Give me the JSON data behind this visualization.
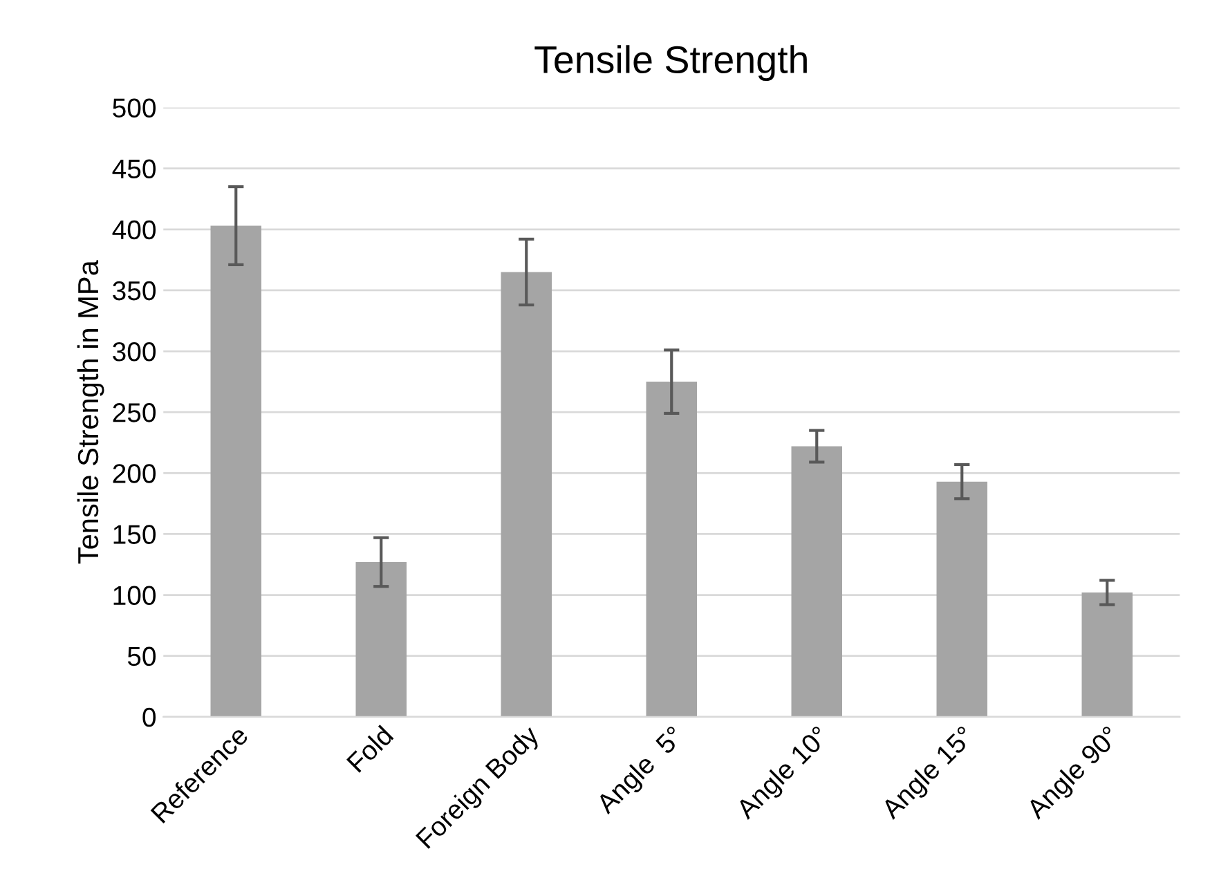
{
  "chart_data": {
    "type": "bar",
    "title": "Tensile Strength",
    "ylabel": "Tensile Strength in MPa",
    "categories": [
      "Reference",
      "Fold",
      "Foreign Body",
      "Angle  5°",
      "Angle 10°",
      "Angle 15°",
      "Angle 90°"
    ],
    "values": [
      403,
      127,
      365,
      275,
      222,
      193,
      102
    ],
    "errors": [
      32,
      20,
      27,
      26,
      13,
      14,
      10
    ],
    "color": "#a5a5a5",
    "ylim": [
      0,
      500
    ],
    "yticks": [
      0,
      50,
      100,
      150,
      200,
      250,
      300,
      350,
      400,
      450,
      500
    ],
    "grid": "y"
  }
}
